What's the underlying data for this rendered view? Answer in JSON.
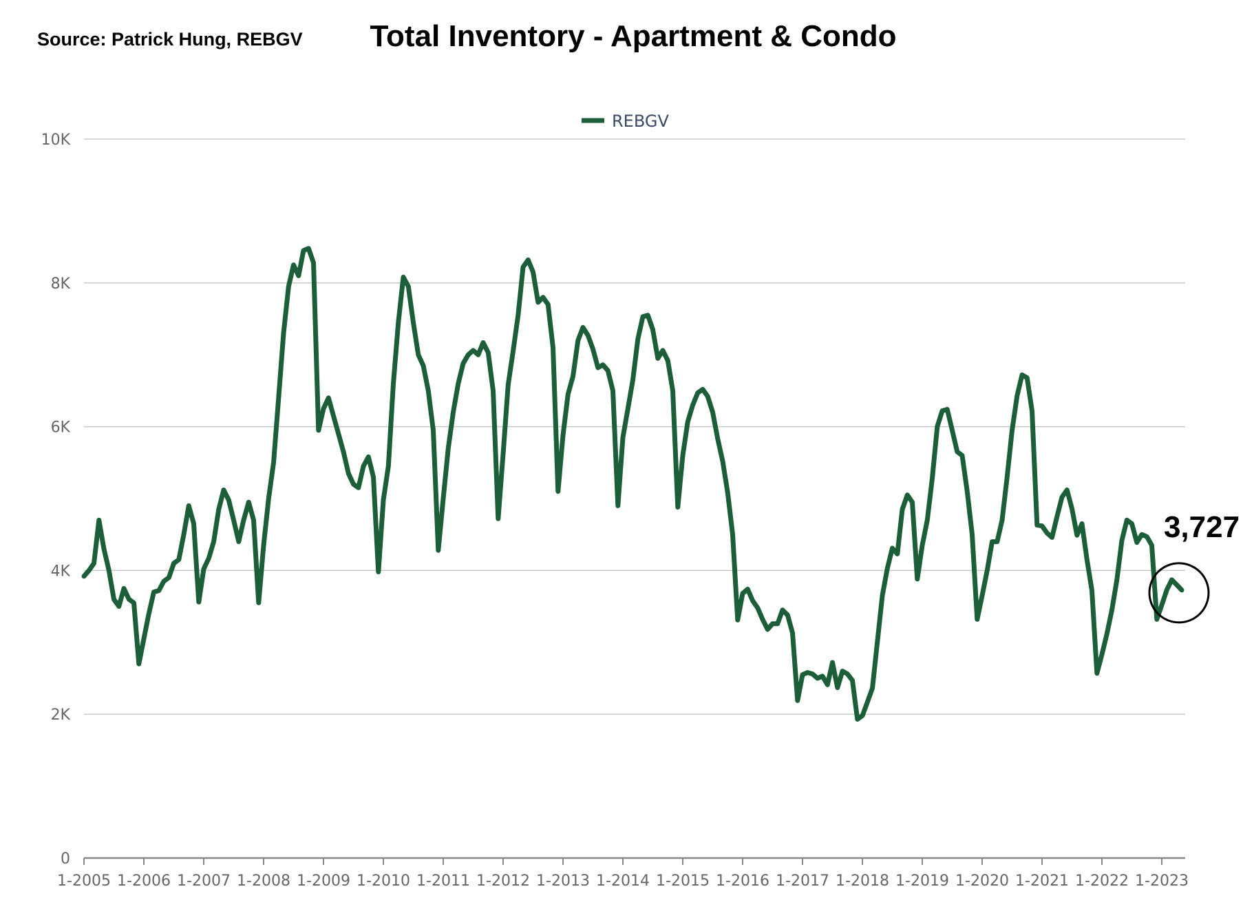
{
  "header": {
    "source": "Source:  Patrick Hung, REBGV",
    "title": "Total Inventory - Apartment & Condo"
  },
  "chart_data": {
    "type": "line",
    "title": "Total Inventory - Apartment & Condo",
    "xlabel": "",
    "ylabel": "",
    "ylim": [
      0,
      10000
    ],
    "y_ticks": [
      {
        "value": 0,
        "label": "0"
      },
      {
        "value": 2000,
        "label": "2K"
      },
      {
        "value": 4000,
        "label": "4K"
      },
      {
        "value": 6000,
        "label": "6K"
      },
      {
        "value": 8000,
        "label": "8K"
      },
      {
        "value": 10000,
        "label": "10K"
      }
    ],
    "x_ticks": [
      "1-2005",
      "1-2006",
      "1-2007",
      "1-2008",
      "1-2009",
      "1-2010",
      "1-2011",
      "1-2012",
      "1-2013",
      "1-2014",
      "1-2015",
      "1-2016",
      "1-2017",
      "1-2018",
      "1-2019",
      "1-2020",
      "1-2021",
      "1-2022",
      "1-2023"
    ],
    "x_start": "1-2005",
    "grid": true,
    "legend_position": "top-center",
    "annotation": {
      "label": "3,727",
      "x": "5-2023",
      "value": 3727
    },
    "series": [
      {
        "name": "REBGV",
        "color": "#1b5e38",
        "values": [
          3920,
          4000,
          4100,
          4700,
          4300,
          4000,
          3600,
          3500,
          3750,
          3600,
          3550,
          2700,
          3050,
          3400,
          3700,
          3720,
          3850,
          3900,
          4100,
          4150,
          4500,
          4900,
          4650,
          3560,
          4020,
          4170,
          4400,
          4850,
          5120,
          4980,
          4700,
          4400,
          4700,
          4950,
          4700,
          3550,
          4350,
          5000,
          5500,
          6400,
          7300,
          7950,
          8250,
          8100,
          8450,
          8480,
          8280,
          5950,
          6250,
          6400,
          6150,
          5900,
          5650,
          5350,
          5200,
          5150,
          5450,
          5580,
          5300,
          3980,
          4980,
          5450,
          6600,
          7450,
          8080,
          7950,
          7450,
          7000,
          6850,
          6500,
          5950,
          4280,
          5000,
          5700,
          6200,
          6600,
          6880,
          7000,
          7060,
          7000,
          7170,
          7030,
          6500,
          4720,
          5620,
          6580,
          7050,
          7550,
          8220,
          8320,
          8150,
          7730,
          7800,
          7700,
          7100,
          5100,
          5880,
          6450,
          6700,
          7200,
          7380,
          7270,
          7080,
          6820,
          6860,
          6780,
          6500,
          4900,
          5850,
          6250,
          6650,
          7220,
          7530,
          7550,
          7350,
          6950,
          7060,
          6920,
          6500,
          4880,
          5600,
          6070,
          6300,
          6470,
          6520,
          6420,
          6200,
          5830,
          5520,
          5080,
          4500,
          3310,
          3680,
          3740,
          3580,
          3480,
          3320,
          3180,
          3260,
          3260,
          3450,
          3380,
          3130,
          2190,
          2550,
          2580,
          2560,
          2500,
          2530,
          2410,
          2720,
          2370,
          2600,
          2560,
          2470,
          1930,
          1980,
          2170,
          2360,
          3010,
          3650,
          4030,
          4310,
          4230,
          4850,
          5050,
          4950,
          3880,
          4350,
          4700,
          5280,
          6000,
          6220,
          6240,
          5950,
          5650,
          5600,
          5100,
          4500,
          3320,
          3650,
          4000,
          4400,
          4400,
          4700,
          5300,
          5950,
          6430,
          6720,
          6680,
          6220,
          4630,
          4620,
          4520,
          4460,
          4750,
          5020,
          5120,
          4860,
          4490,
          4650,
          4150,
          3720,
          2570,
          2830,
          3120,
          3450,
          3870,
          4420,
          4700,
          4650,
          4390,
          4500,
          4470,
          4350,
          3320,
          3520,
          3730,
          3870,
          3800,
          3727
        ]
      }
    ]
  },
  "legend": {
    "items": [
      {
        "label": "REBGV",
        "color": "#1b5e38"
      }
    ]
  }
}
